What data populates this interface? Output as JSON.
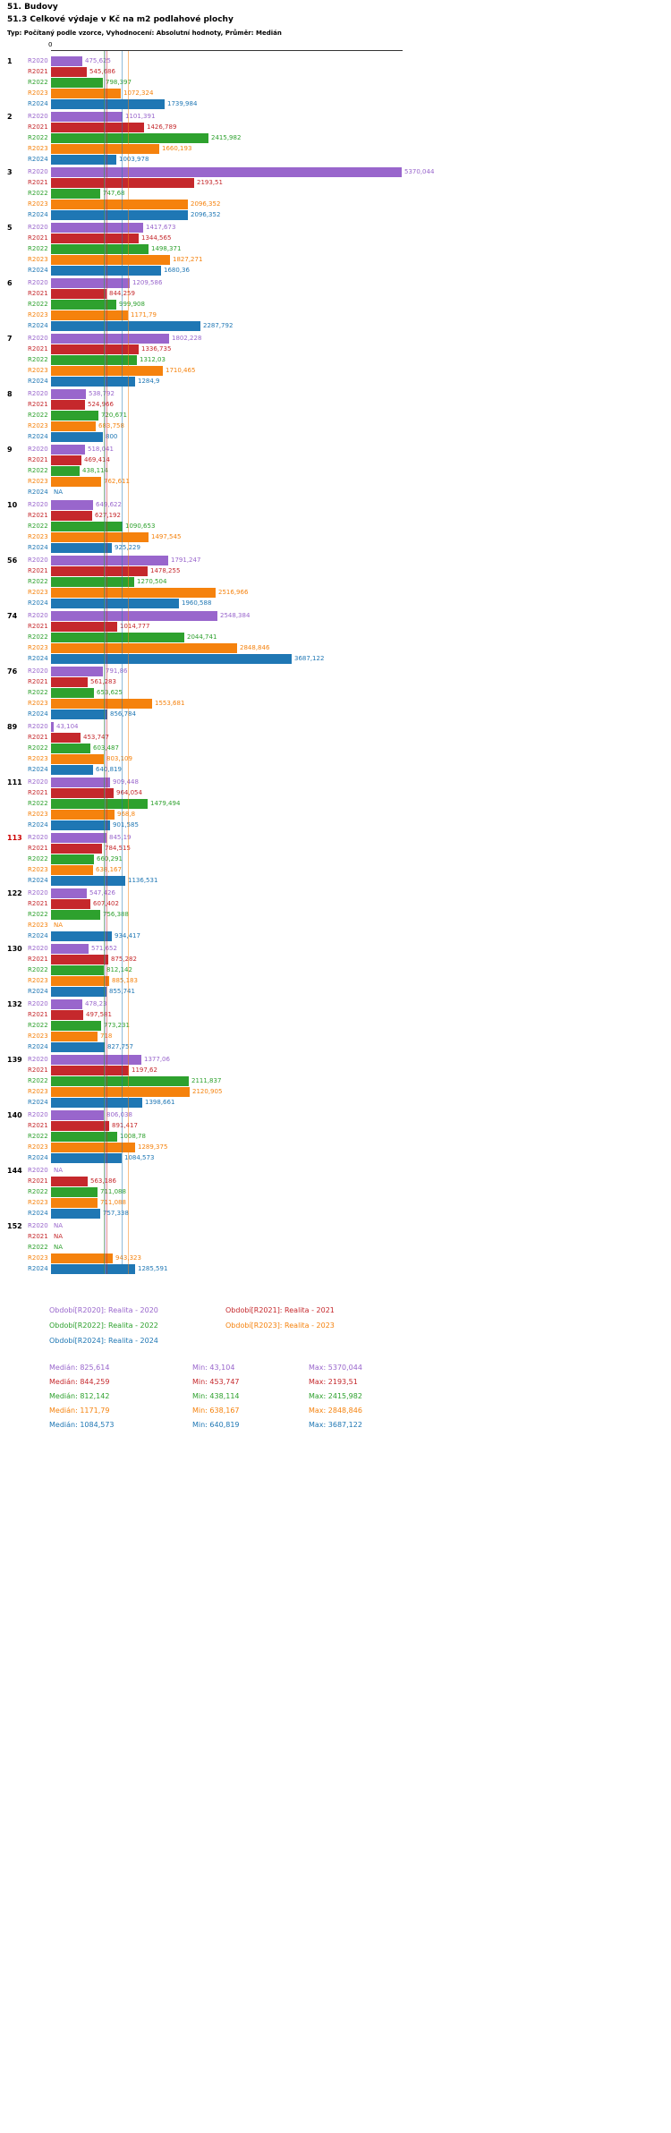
{
  "title": "51. Budovy",
  "subtitle": "51.3 Celkové výdaje v Kč na m2 podlahové plochy",
  "meta": "Typ: Počítaný podle vzorce, Vyhodnocení: Absolutní hodnoty, Průměr: Medián",
  "axis_zero": "0",
  "colors": {
    "R2020": "#9966cc",
    "R2021": "#c5282c",
    "R2022": "#2ea12e",
    "R2023": "#f5820d",
    "R2024": "#1f77b4",
    "highlight": "#cc0000"
  },
  "legend": {
    "items": [
      {
        "series": "R2020",
        "label": "Období[R2020]: Realita - 2020"
      },
      {
        "series": "R2021",
        "label": "Období[R2021]: Realita - 2021"
      },
      {
        "series": "R2022",
        "label": "Období[R2022]: Realita - 2022"
      },
      {
        "series": "R2023",
        "label": "Období[R2023]: Realita - 2023"
      },
      {
        "series": "R2024",
        "label": "Období[R2024]: Realita - 2024"
      }
    ]
  },
  "stats": [
    {
      "series": "R2020",
      "median": "Medián: 825,614",
      "min": "Min: 43,104",
      "max": "Max: 5370,044"
    },
    {
      "series": "R2021",
      "median": "Medián: 844,259",
      "min": "Min: 453,747",
      "max": "Max: 2193,51"
    },
    {
      "series": "R2022",
      "median": "Medián: 812,142",
      "min": "Min: 438,114",
      "max": "Max: 2415,982"
    },
    {
      "series": "R2023",
      "median": "Medián: 1171,79",
      "min": "Min: 638,167",
      "max": "Max: 2848,846"
    },
    {
      "series": "R2024",
      "median": "Medián: 1084,573",
      "min": "Min: 640,819",
      "max": "Max: 3687,122"
    }
  ],
  "chart_data": {
    "type": "bar",
    "orientation": "horizontal",
    "title": "51.3 Celkové výdaje v Kč na m2 podlahové plochy",
    "xlabel": "",
    "ylabel": "",
    "x_axis_ticks": [
      "0"
    ],
    "xlim": [
      0,
      5500
    ],
    "legend_position": "bottom",
    "series_keys": [
      "R2020",
      "R2021",
      "R2022",
      "R2023",
      "R2024"
    ],
    "medians": {
      "R2020": 825.614,
      "R2021": 844.259,
      "R2022": 812.142,
      "R2023": 1171.79,
      "R2024": 1084.573
    },
    "groups": [
      {
        "id": "1",
        "highlight": false,
        "values": {
          "R2020": "475,625",
          "R2021": "545,686",
          "R2022": "798,397",
          "R2023": "1072,324",
          "R2024": "1739,984"
        }
      },
      {
        "id": "2",
        "highlight": false,
        "values": {
          "R2020": "1101,391",
          "R2021": "1426,789",
          "R2022": "2415,982",
          "R2023": "1660,193",
          "R2024": "1003,978"
        }
      },
      {
        "id": "3",
        "highlight": false,
        "values": {
          "R2020": "5370,044",
          "R2021": "2193,51",
          "R2022": "747,68",
          "R2023": "2096,352",
          "R2024": "2096,352"
        }
      },
      {
        "id": "5",
        "highlight": false,
        "values": {
          "R2020": "1417,673",
          "R2021": "1344,565",
          "R2022": "1498,371",
          "R2023": "1827,271",
          "R2024": "1680,36"
        }
      },
      {
        "id": "6",
        "highlight": false,
        "values": {
          "R2020": "1209,586",
          "R2021": "844,259",
          "R2022": "999,908",
          "R2023": "1171,79",
          "R2024": "2287,792"
        }
      },
      {
        "id": "7",
        "highlight": false,
        "values": {
          "R2020": "1802,228",
          "R2021": "1336,735",
          "R2022": "1312,03",
          "R2023": "1710,465",
          "R2024": "1284,9"
        }
      },
      {
        "id": "8",
        "highlight": false,
        "values": {
          "R2020": "538,792",
          "R2021": "524,966",
          "R2022": "720,671",
          "R2023": "683,758",
          "R2024": "800"
        }
      },
      {
        "id": "9",
        "highlight": false,
        "values": {
          "R2020": "518,041",
          "R2021": "469,414",
          "R2022": "438,114",
          "R2023": "762,611",
          "R2024": "NA"
        }
      },
      {
        "id": "10",
        "highlight": false,
        "values": {
          "R2020": "649,622",
          "R2021": "627,192",
          "R2022": "1090,653",
          "R2023": "1497,545",
          "R2024": "925,229"
        }
      },
      {
        "id": "56",
        "highlight": false,
        "values": {
          "R2020": "1791,247",
          "R2021": "1478,255",
          "R2022": "1270,504",
          "R2023": "2516,966",
          "R2024": "1960,588"
        }
      },
      {
        "id": "74",
        "highlight": false,
        "values": {
          "R2020": "2548,384",
          "R2021": "1014,777",
          "R2022": "2044,741",
          "R2023": "2848,846",
          "R2024": "3687,122"
        }
      },
      {
        "id": "76",
        "highlight": false,
        "values": {
          "R2020": "791,86",
          "R2021": "561,283",
          "R2022": "653,625",
          "R2023": "1553,681",
          "R2024": "856,784"
        }
      },
      {
        "id": "89",
        "highlight": false,
        "values": {
          "R2020": "43,104",
          "R2021": "453,747",
          "R2022": "603,487",
          "R2023": "803,109",
          "R2024": "640,819"
        }
      },
      {
        "id": "111",
        "highlight": false,
        "values": {
          "R2020": "909,448",
          "R2021": "964,054",
          "R2022": "1479,494",
          "R2023": "968,8",
          "R2024": "901,585"
        }
      },
      {
        "id": "113",
        "highlight": true,
        "values": {
          "R2020": "845,19",
          "R2021": "784,515",
          "R2022": "660,291",
          "R2023": "638,167",
          "R2024": "1136,531"
        }
      },
      {
        "id": "122",
        "highlight": false,
        "values": {
          "R2020": "547,426",
          "R2021": "607,402",
          "R2022": "756,388",
          "R2023": "NA",
          "R2024": "934,417"
        }
      },
      {
        "id": "130",
        "highlight": false,
        "values": {
          "R2020": "571,652",
          "R2021": "875,282",
          "R2022": "812,142",
          "R2023": "885,183",
          "R2024": "855,741"
        }
      },
      {
        "id": "132",
        "highlight": false,
        "values": {
          "R2020": "478,23",
          "R2021": "497,581",
          "R2022": "773,231",
          "R2023": "718",
          "R2024": "827,757"
        }
      },
      {
        "id": "139",
        "highlight": false,
        "values": {
          "R2020": "1377,06",
          "R2021": "1197,62",
          "R2022": "2111,837",
          "R2023": "2120,905",
          "R2024": "1398,661"
        }
      },
      {
        "id": "140",
        "highlight": false,
        "values": {
          "R2020": "806,038",
          "R2021": "891,417",
          "R2022": "1008,78",
          "R2023": "1289,375",
          "R2024": "1084,573"
        }
      },
      {
        "id": "144",
        "highlight": false,
        "values": {
          "R2020": "NA",
          "R2021": "563,186",
          "R2022": "711,088",
          "R2023": "711,088",
          "R2024": "757,338"
        }
      },
      {
        "id": "152",
        "highlight": false,
        "values": {
          "R2020": "NA",
          "R2021": "NA",
          "R2022": "NA",
          "R2023": "943,323",
          "R2024": "1285,591"
        }
      }
    ]
  }
}
